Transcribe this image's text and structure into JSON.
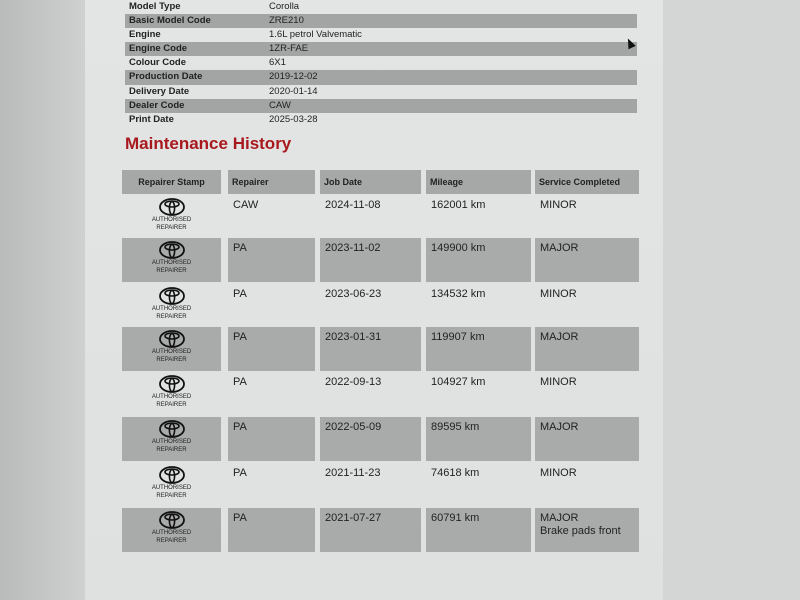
{
  "vehicle_info": [
    {
      "label": "Model Type",
      "value": "Corolla"
    },
    {
      "label": "Basic Model Code",
      "value": "ZRE210"
    },
    {
      "label": "Engine",
      "value": "1.6L petrol Valvematic"
    },
    {
      "label": "Engine Code",
      "value": "1ZR-FAE"
    },
    {
      "label": "Colour Code",
      "value": "6X1"
    },
    {
      "label": "Production Date",
      "value": "2019-12-02"
    },
    {
      "label": "Delivery Date",
      "value": "2020-01-14"
    },
    {
      "label": "Dealer Code",
      "value": "CAW"
    },
    {
      "label": "Print Date",
      "value": "2025-03-28"
    }
  ],
  "maintenance": {
    "title": "Maintenance History",
    "headers": [
      "Repairer Stamp",
      "Repairer",
      "Job Date",
      "Mileage",
      "Service Completed"
    ],
    "stamp_line1": "AUTHORISED",
    "stamp_line2": "REPAIRER",
    "stamp_icon": "toyota-logo-icon",
    "rows": [
      {
        "repairer": "CAW",
        "date": "2024-11-08",
        "mileage": "162001 km",
        "service": "MINOR",
        "note": ""
      },
      {
        "repairer": "PA",
        "date": "2023-11-02",
        "mileage": "149900 km",
        "service": "MAJOR",
        "note": ""
      },
      {
        "repairer": "PA",
        "date": "2023-06-23",
        "mileage": "134532 km",
        "service": "MINOR",
        "note": ""
      },
      {
        "repairer": "PA",
        "date": "2023-01-31",
        "mileage": "119907 km",
        "service": "MAJOR",
        "note": ""
      },
      {
        "repairer": "PA",
        "date": "2022-09-13",
        "mileage": "104927 km",
        "service": "MINOR",
        "note": ""
      },
      {
        "repairer": "PA",
        "date": "2022-05-09",
        "mileage": "89595 km",
        "service": "MAJOR",
        "note": ""
      },
      {
        "repairer": "PA",
        "date": "2021-11-23",
        "mileage": "74618 km",
        "service": "MINOR",
        "note": ""
      },
      {
        "repairer": "PA",
        "date": "2021-07-27",
        "mileage": "60791 km",
        "service": "MAJOR",
        "note": "Brake pads front"
      }
    ]
  },
  "colors": {
    "heading": "#a8191e",
    "shade": "#a6a7a7"
  }
}
